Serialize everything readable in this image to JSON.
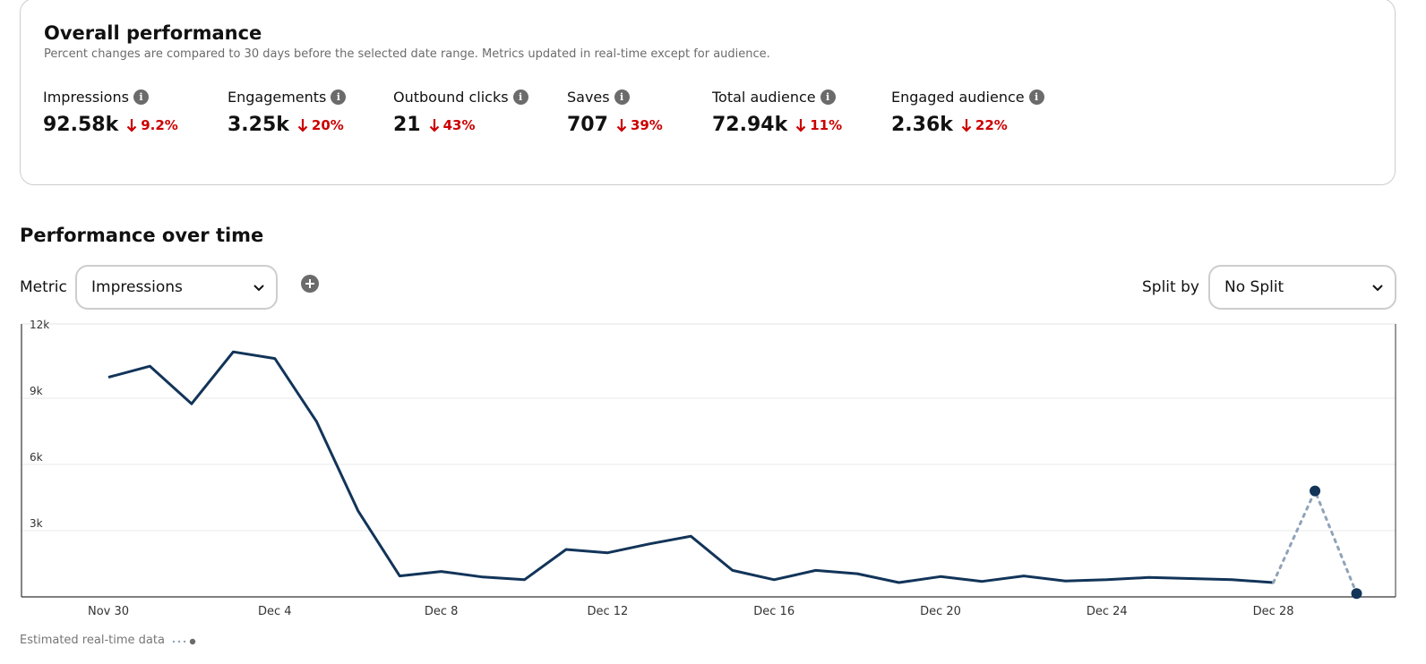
{
  "overall": {
    "title": "Overall performance",
    "subtitle": "Percent changes are compared to 30 days before the selected date range. Metrics updated in real-time except for audience.",
    "metrics": [
      {
        "label": "Impressions",
        "value": "92.58k",
        "change": "9.2%",
        "direction": "down"
      },
      {
        "label": "Engagements",
        "value": "3.25k",
        "change": "20%",
        "direction": "down"
      },
      {
        "label": "Outbound clicks",
        "value": "21",
        "change": "43%",
        "direction": "down"
      },
      {
        "label": "Saves",
        "value": "707",
        "change": "39%",
        "direction": "down"
      },
      {
        "label": "Total audience",
        "value": "72.94k",
        "change": "11%",
        "direction": "down"
      },
      {
        "label": "Engaged audience",
        "value": "2.36k",
        "change": "22%",
        "direction": "down"
      }
    ],
    "info_icon_glyph": "i"
  },
  "performance": {
    "title": "Performance over time",
    "metric_label": "Metric",
    "metric_selected": "Impressions",
    "split_label": "Split by",
    "split_selected": "No Split"
  },
  "legend": {
    "estimated_label": "Estimated real-time data"
  },
  "colors": {
    "line": "#123459",
    "estimated": "#8fa3b8",
    "negative": "#cc0000",
    "icon": "#6b6b6b"
  },
  "chart_data": {
    "type": "line",
    "x": [
      "Nov 30",
      "Dec 1",
      "Dec 2",
      "Dec 3",
      "Dec 4",
      "Dec 5",
      "Dec 6",
      "Dec 7",
      "Dec 8",
      "Dec 9",
      "Dec 10",
      "Dec 11",
      "Dec 12",
      "Dec 13",
      "Dec 14",
      "Dec 15",
      "Dec 16",
      "Dec 17",
      "Dec 18",
      "Dec 19",
      "Dec 20",
      "Dec 21",
      "Dec 22",
      "Dec 23",
      "Dec 24",
      "Dec 25",
      "Dec 26",
      "Dec 27",
      "Dec 28",
      "Dec 29",
      "Dec 30"
    ],
    "series": [
      {
        "values": [
          9950,
          10450,
          8750,
          11100,
          10800,
          7950,
          3900,
          950,
          1150,
          900,
          780,
          2150,
          2000,
          2400,
          2750,
          1200,
          780,
          1200,
          1050,
          650,
          920,
          700,
          950,
          720,
          780,
          880,
          830,
          780,
          650,
          null,
          null
        ]
      },
      {
        "estimated": true,
        "values": [
          null,
          null,
          null,
          null,
          null,
          null,
          null,
          null,
          null,
          null,
          null,
          null,
          null,
          null,
          null,
          null,
          null,
          null,
          null,
          null,
          null,
          null,
          null,
          null,
          null,
          null,
          null,
          null,
          650,
          4800,
          150
        ]
      }
    ],
    "x_tick_labels": [
      "Nov 30",
      "Dec 4",
      "Dec 8",
      "Dec 12",
      "Dec 16",
      "Dec 20",
      "Dec 24",
      "Dec 28"
    ],
    "y_ticks": [
      3000,
      6000,
      9000,
      12000
    ],
    "y_tick_labels": [
      "3k",
      "6k",
      "9k",
      "12k"
    ],
    "ylim": [
      0,
      12000
    ],
    "grid": true
  }
}
